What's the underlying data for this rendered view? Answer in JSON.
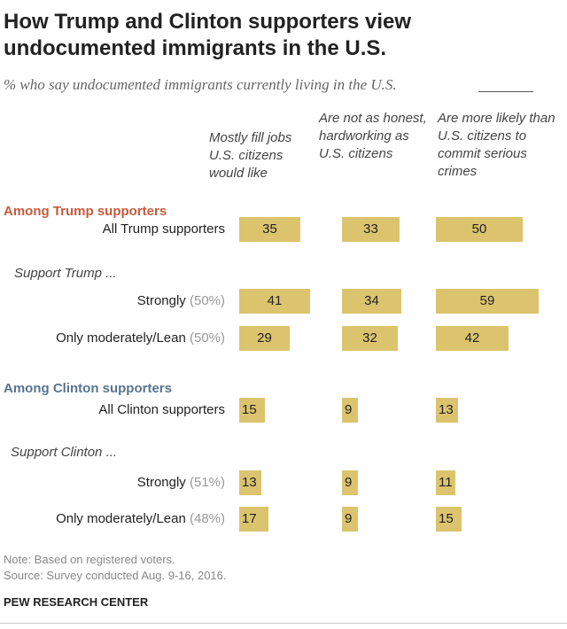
{
  "title": "How Trump and Clinton supporters view undocumented immigrants in the U.S.",
  "subtitle": "% who say undocumented immigrants currently living in the U.S.",
  "columns": [
    "Mostly fill jobs U.S. citizens would like",
    "Are not as honest, hardworking as U.S. citizens",
    "Are more likely than U.S. citizens to commit serious crimes"
  ],
  "groups": {
    "trump": "Among Trump supporters",
    "trump_sub": "Support Trump ...",
    "clinton": "Among Clinton supporters",
    "clinton_sub": "Support Clinton ..."
  },
  "colors": {
    "bar": "#dcc36e",
    "trump": "#c65a3e",
    "clinton": "#5a7490"
  },
  "chart_data": {
    "type": "bar",
    "title": "How Trump and Clinton supporters view undocumented immigrants in the U.S.",
    "subtitle": "% who say undocumented immigrants currently living in the U.S.",
    "categories": [
      "All Trump supporters",
      "Strongly (50%)",
      "Only moderately/Lean (50%)",
      "All Clinton supporters",
      "Strongly (51%)",
      "Only moderately/Lean (48%)"
    ],
    "series": [
      {
        "name": "Mostly fill jobs U.S. citizens would like",
        "values": [
          35,
          41,
          29,
          15,
          13,
          17
        ]
      },
      {
        "name": "Are not as honest, hardworking as U.S. citizens",
        "values": [
          33,
          34,
          32,
          9,
          9,
          9
        ]
      },
      {
        "name": "Are more likely than U.S. citizens to commit serious crimes",
        "values": [
          50,
          59,
          42,
          13,
          11,
          15
        ]
      }
    ]
  },
  "rows": [
    {
      "label": "All Trump supporters",
      "pct": ""
    },
    {
      "label": "Strongly",
      "pct": "(50%)"
    },
    {
      "label": "Only moderately/Lean",
      "pct": "(50%)"
    },
    {
      "label": "All Clinton supporters",
      "pct": ""
    },
    {
      "label": "Strongly",
      "pct": "(51%)"
    },
    {
      "label": "Only moderately/Lean",
      "pct": "(48%)"
    }
  ],
  "notes": {
    "note": "Note: Based on registered voters.",
    "source": "Source: Survey conducted Aug. 9-16, 2016.",
    "org": "PEW RESEARCH CENTER"
  }
}
